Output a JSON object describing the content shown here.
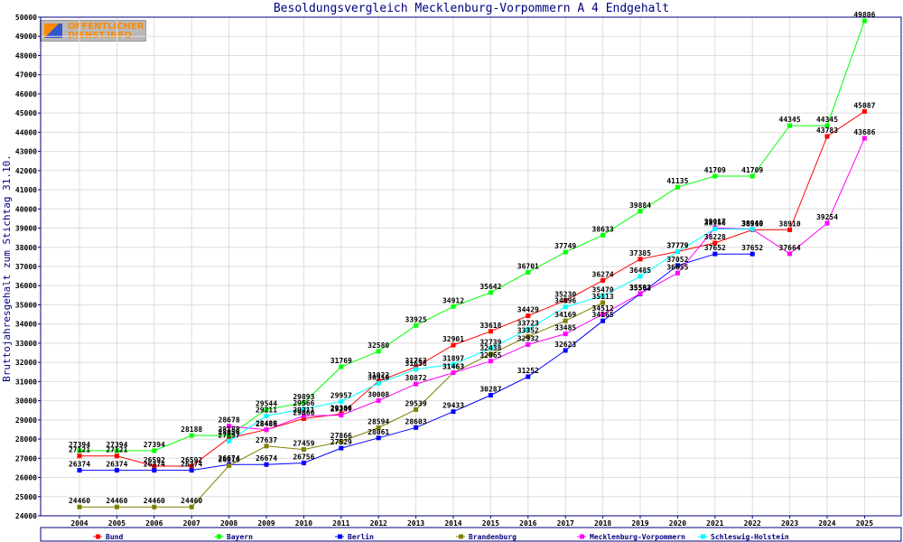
{
  "logo": {
    "line1": "OFFENTLICHER",
    "line2": "DIENST.INFO"
  },
  "chart_data": {
    "type": "line",
    "title": "Besoldungsvergleich Mecklenburg-Vorpommern A 4 Endgehalt",
    "xlabel": "",
    "ylabel": "Bruttojahresgehalt zum Stichtag 31.10.",
    "categories": [
      "2004",
      "2005",
      "2006",
      "2007",
      "2008",
      "2009",
      "2010",
      "2011",
      "2012",
      "2013",
      "2014",
      "2015",
      "2016",
      "2017",
      "2018",
      "2019",
      "2020",
      "2021",
      "2022",
      "2023",
      "2024",
      "2025"
    ],
    "yticks": [
      "24000",
      "25000",
      "26000",
      "27000",
      "28000",
      "29000",
      "30000",
      "31000",
      "32000",
      "33000",
      "34000",
      "35000",
      "36000",
      "37000",
      "38000",
      "39000",
      "40000",
      "41000",
      "42000",
      "43000",
      "44000",
      "45000",
      "46000",
      "47000",
      "48000",
      "49000",
      "50000"
    ],
    "ylim": [
      24000,
      50000
    ],
    "grid": true,
    "legend_position": "bottom",
    "series": [
      {
        "name": "Bund",
        "color": "#ff0000",
        "values": [
          27121,
          27121,
          26592,
          26592,
          28056,
          28489,
          29066,
          29306,
          31022,
          31763,
          32901,
          33618,
          34429,
          35230,
          36274,
          37385,
          37779,
          38228,
          38910,
          38910,
          43783,
          45087
        ]
      },
      {
        "name": "Bayern",
        "color": "#00ff00",
        "values": [
          27394,
          27394,
          27394,
          28188,
          28188,
          29544,
          29893,
          31769,
          32580,
          33925,
          34912,
          35642,
          36701,
          37749,
          38633,
          39884,
          41135,
          41709,
          41709,
          44345,
          44345,
          49806
        ]
      },
      {
        "name": "Berlin",
        "color": "#0000ff",
        "values": [
          26374,
          26374,
          26374,
          26374,
          26674,
          26674,
          26756,
          27529,
          28061,
          28603,
          29433,
          30287,
          31252,
          32623,
          34165,
          35562,
          37052,
          37652,
          37652,
          null,
          null,
          null
        ]
      },
      {
        "name": "Brandenburg",
        "color": "#808000",
        "values": [
          24460,
          24460,
          24460,
          24460,
          26616,
          27637,
          27459,
          27866,
          28594,
          29539,
          31463,
          32438,
          33352,
          34169,
          35113,
          null,
          null,
          null,
          null,
          null,
          null,
          null
        ]
      },
      {
        "name": "Mecklenburg-Vorpommern",
        "color": "#ff00ff",
        "values": [
          null,
          null,
          null,
          null,
          28678,
          28486,
          29211,
          29247,
          30008,
          30872,
          31463,
          32065,
          32932,
          33485,
          34512,
          35593,
          36655,
          39017,
          38940,
          37664,
          39254,
          43686
        ]
      },
      {
        "name": "Schleswig-Holstein",
        "color": "#00ffff",
        "values": [
          null,
          null,
          null,
          null,
          27897,
          29211,
          29566,
          29957,
          30910,
          31638,
          31897,
          32739,
          33723,
          34896,
          35470,
          36485,
          37779,
          38956,
          38940,
          null,
          null,
          null
        ]
      }
    ]
  }
}
